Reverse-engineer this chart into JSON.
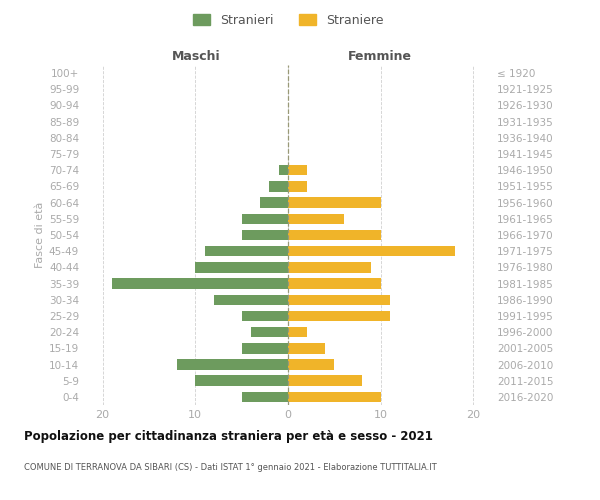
{
  "age_groups": [
    "0-4",
    "5-9",
    "10-14",
    "15-19",
    "20-24",
    "25-29",
    "30-34",
    "35-39",
    "40-44",
    "45-49",
    "50-54",
    "55-59",
    "60-64",
    "65-69",
    "70-74",
    "75-79",
    "80-84",
    "85-89",
    "90-94",
    "95-99",
    "100+"
  ],
  "birth_years": [
    "2016-2020",
    "2011-2015",
    "2006-2010",
    "2001-2005",
    "1996-2000",
    "1991-1995",
    "1986-1990",
    "1981-1985",
    "1976-1980",
    "1971-1975",
    "1966-1970",
    "1961-1965",
    "1956-1960",
    "1951-1955",
    "1946-1950",
    "1941-1945",
    "1936-1940",
    "1931-1935",
    "1926-1930",
    "1921-1925",
    "≤ 1920"
  ],
  "maschi": [
    5,
    10,
    12,
    5,
    4,
    5,
    8,
    19,
    10,
    9,
    5,
    5,
    3,
    2,
    1,
    0,
    0,
    0,
    0,
    0,
    0
  ],
  "femmine": [
    10,
    8,
    5,
    4,
    2,
    11,
    11,
    10,
    9,
    18,
    10,
    6,
    10,
    2,
    2,
    0,
    0,
    0,
    0,
    0,
    0
  ],
  "color_maschi": "#6d9b5e",
  "color_femmine": "#f0b429",
  "title": "Popolazione per cittadinanza straniera per età e sesso - 2021",
  "subtitle": "COMUNE DI TERRANOVA DA SIBARI (CS) - Dati ISTAT 1° gennaio 2021 - Elaborazione TUTTITALIA.IT",
  "label_maschi": "Stranieri",
  "label_femmine": "Straniere",
  "header_left": "Maschi",
  "header_right": "Femmine",
  "ylabel_left": "Fasce di età",
  "xlim": 22,
  "background_color": "#ffffff",
  "grid_color": "#d0d0d0",
  "tick_color": "#aaaaaa",
  "text_color": "#555555",
  "title_color": "#111111"
}
